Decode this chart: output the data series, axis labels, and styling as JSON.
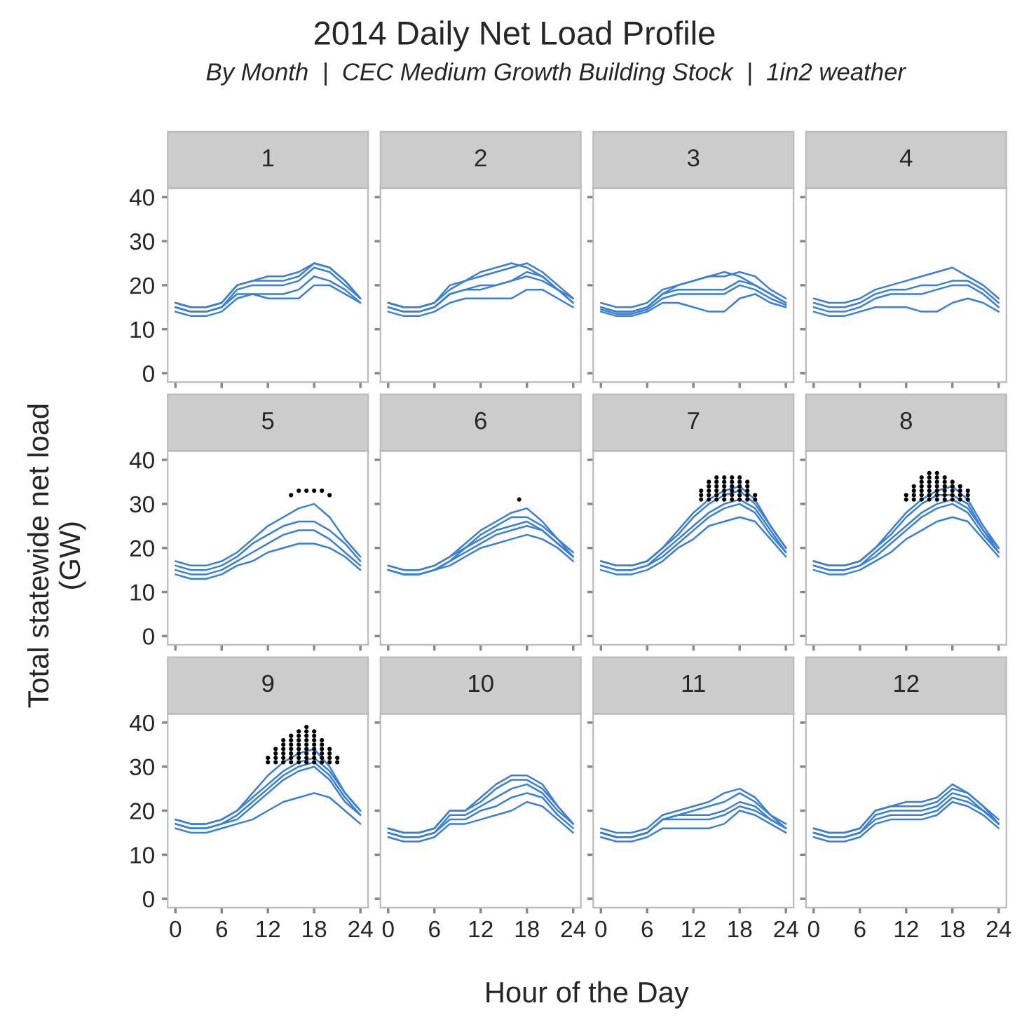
{
  "chart_data": [
    {
      "type": "line",
      "title": "1",
      "annotations": [
        "2014 Daily Net Load Profile",
        "By Month  |  CEC Medium Growth Building Stock  |  1in2 weather"
      ],
      "tick_labels": "y",
      "xlim": [
        -1,
        25
      ],
      "xticks": [
        0,
        6,
        12,
        18,
        24
      ],
      "ylim": [
        -2,
        42
      ],
      "yticks": [
        0,
        10,
        20,
        30,
        40
      ],
      "x": [
        0,
        2,
        4,
        6,
        8,
        10,
        12,
        14,
        16,
        18,
        20,
        22,
        24
      ],
      "series": [
        {
          "color": "#3a7fd5",
          "values": [
            15,
            14,
            14,
            15,
            19,
            20,
            20,
            20,
            21,
            24,
            23,
            20,
            17
          ]
        },
        {
          "color": "#3a7fd5",
          "values": [
            16,
            15,
            15,
            16,
            20,
            21,
            21,
            21,
            22,
            25,
            24,
            21,
            17
          ]
        },
        {
          "color": "#3a7fd5",
          "values": [
            14,
            13,
            13,
            14,
            17,
            18,
            18,
            18,
            19,
            22,
            21,
            19,
            16
          ]
        },
        {
          "color": "#3a7fd5",
          "values": [
            15,
            14,
            14,
            15,
            18,
            18,
            17,
            17,
            17,
            20,
            20,
            18,
            16
          ]
        },
        {
          "color": "#3a7fd5",
          "values": [
            16,
            15,
            15,
            16,
            20,
            21,
            22,
            22,
            23,
            25,
            24,
            21,
            17
          ]
        }
      ]
    },
    {
      "type": "line",
      "title": "2",
      "tick_labels": false,
      "xlim": [
        -1,
        25
      ],
      "xticks": [
        0,
        6,
        12,
        18,
        24
      ],
      "ylim": [
        -2,
        42
      ],
      "yticks": [
        0,
        10,
        20,
        30,
        40
      ],
      "x": [
        0,
        2,
        4,
        6,
        8,
        10,
        12,
        14,
        16,
        18,
        20,
        22,
        24
      ],
      "series": [
        {
          "color": "#3a7fd5",
          "values": [
            15,
            14,
            14,
            15,
            18,
            19,
            20,
            20,
            21,
            22,
            21,
            19,
            16
          ]
        },
        {
          "color": "#3a7fd5",
          "values": [
            16,
            15,
            15,
            16,
            20,
            21,
            22,
            23,
            24,
            25,
            23,
            20,
            17
          ]
        },
        {
          "color": "#3a7fd5",
          "values": [
            14,
            13,
            13,
            14,
            16,
            17,
            17,
            17,
            17,
            19,
            19,
            17,
            15
          ]
        },
        {
          "color": "#3a7fd5",
          "values": [
            15,
            14,
            14,
            15,
            18,
            19,
            19,
            20,
            21,
            23,
            22,
            19,
            16
          ]
        },
        {
          "color": "#3a7fd5",
          "values": [
            16,
            15,
            15,
            16,
            19,
            21,
            23,
            24,
            25,
            24,
            22,
            19,
            17
          ]
        }
      ]
    },
    {
      "type": "line",
      "title": "3",
      "tick_labels": false,
      "xlim": [
        -1,
        25
      ],
      "xticks": [
        0,
        6,
        12,
        18,
        24
      ],
      "ylim": [
        -2,
        42
      ],
      "yticks": [
        0,
        10,
        20,
        30,
        40
      ],
      "x": [
        0,
        2,
        4,
        6,
        8,
        10,
        12,
        14,
        16,
        18,
        20,
        22,
        24
      ],
      "series": [
        {
          "color": "#3a7fd5",
          "values": [
            15,
            14,
            14,
            15,
            18,
            19,
            19,
            19,
            19,
            21,
            20,
            18,
            16
          ]
        },
        {
          "color": "#3a7fd5",
          "values": [
            16,
            15,
            15,
            16,
            19,
            20,
            21,
            22,
            22,
            23,
            22,
            19,
            17
          ]
        },
        {
          "color": "#3a7fd5",
          "values": [
            14,
            13,
            13,
            14,
            16,
            16,
            15,
            14,
            14,
            17,
            18,
            16,
            15
          ]
        },
        {
          "color": "#3a7fd5",
          "values": [
            14.5,
            13.5,
            13.5,
            14.5,
            17,
            18,
            18,
            18,
            18,
            20,
            19,
            17,
            15.5
          ]
        },
        {
          "color": "#3a7fd5",
          "values": [
            15,
            14,
            14,
            15,
            18,
            20,
            21,
            22,
            23,
            22,
            20,
            18,
            16
          ]
        }
      ]
    },
    {
      "type": "line",
      "title": "4",
      "tick_labels": false,
      "xlim": [
        -1,
        25
      ],
      "xticks": [
        0,
        6,
        12,
        18,
        24
      ],
      "ylim": [
        -2,
        42
      ],
      "yticks": [
        0,
        10,
        20,
        30,
        40
      ],
      "x": [
        0,
        2,
        4,
        6,
        8,
        10,
        12,
        14,
        16,
        18,
        20,
        22,
        24
      ],
      "series": [
        {
          "color": "#3a7fd5",
          "values": [
            15,
            14,
            14,
            15,
            17,
            18,
            18,
            18,
            19,
            20,
            20,
            18,
            15
          ]
        },
        {
          "color": "#3a7fd5",
          "values": [
            17,
            16,
            16,
            17,
            19,
            20,
            21,
            22,
            23,
            24,
            22,
            20,
            17
          ]
        },
        {
          "color": "#3a7fd5",
          "values": [
            14,
            13,
            13,
            14,
            15,
            15,
            15,
            14,
            14,
            16,
            17,
            16,
            14
          ]
        },
        {
          "color": "#3a7fd5",
          "values": [
            16,
            15,
            15,
            16,
            18,
            19,
            19,
            20,
            20,
            21,
            21,
            19,
            16
          ]
        }
      ]
    },
    {
      "type": "line",
      "title": "5",
      "tick_labels": "y",
      "xlim": [
        -1,
        25
      ],
      "xticks": [
        0,
        6,
        12,
        18,
        24
      ],
      "ylim": [
        -2,
        42
      ],
      "yticks": [
        0,
        10,
        20,
        30,
        40
      ],
      "x": [
        0,
        2,
        4,
        6,
        8,
        10,
        12,
        14,
        16,
        18,
        20,
        22,
        24
      ],
      "series": [
        {
          "color": "#3a7fd5",
          "values": [
            15,
            14,
            14,
            15,
            17,
            19,
            21,
            23,
            24,
            24,
            22,
            19,
            16
          ]
        },
        {
          "color": "#3a7fd5",
          "values": [
            17,
            16,
            16,
            17,
            19,
            22,
            25,
            27,
            29,
            30,
            27,
            22,
            18
          ]
        },
        {
          "color": "#3a7fd5",
          "values": [
            14,
            13,
            13,
            14,
            16,
            17,
            19,
            20,
            21,
            21,
            20,
            18,
            15
          ]
        },
        {
          "color": "#3a7fd5",
          "values": [
            16,
            15,
            15,
            16,
            18,
            21,
            23,
            25,
            26,
            26,
            24,
            21,
            17
          ]
        },
        {
          "type": "scatter",
          "marker": "circle",
          "color": "#000000",
          "x": [
            15,
            16,
            17,
            18,
            19,
            20
          ],
          "values": [
            32,
            33,
            33,
            33,
            33,
            32
          ]
        }
      ]
    },
    {
      "type": "line",
      "title": "6",
      "tick_labels": false,
      "xlim": [
        -1,
        25
      ],
      "xticks": [
        0,
        6,
        12,
        18,
        24
      ],
      "ylim": [
        -2,
        42
      ],
      "yticks": [
        0,
        10,
        20,
        30,
        40
      ],
      "x": [
        0,
        2,
        4,
        6,
        8,
        10,
        12,
        14,
        16,
        18,
        20,
        22,
        24
      ],
      "series": [
        {
          "color": "#3a7fd5",
          "values": [
            15,
            14,
            14,
            15,
            17,
            20,
            22,
            24,
            25,
            26,
            24,
            21,
            18
          ]
        },
        {
          "color": "#3a7fd5",
          "values": [
            16,
            15,
            15,
            16,
            18,
            21,
            24,
            26,
            28,
            29,
            26,
            22,
            19
          ]
        },
        {
          "color": "#3a7fd5",
          "values": [
            15,
            14,
            14,
            15,
            16,
            18,
            20,
            21,
            22,
            23,
            22,
            20,
            17
          ]
        },
        {
          "color": "#3a7fd5",
          "values": [
            15,
            14,
            14,
            15,
            17,
            19,
            21,
            23,
            24,
            25,
            24,
            21,
            18
          ]
        },
        {
          "color": "#3a7fd5",
          "values": [
            16,
            15,
            15,
            16,
            18,
            20,
            23,
            25,
            27,
            27,
            25,
            22,
            18
          ]
        },
        {
          "type": "scatter",
          "marker": "circle",
          "color": "#000000",
          "x": [
            17
          ],
          "values": [
            31
          ]
        }
      ]
    },
    {
      "type": "line",
      "title": "7",
      "tick_labels": false,
      "xlim": [
        -1,
        25
      ],
      "xticks": [
        0,
        6,
        12,
        18,
        24
      ],
      "ylim": [
        -2,
        42
      ],
      "yticks": [
        0,
        10,
        20,
        30,
        40
      ],
      "x": [
        0,
        2,
        4,
        6,
        8,
        10,
        12,
        14,
        16,
        18,
        20,
        22,
        24
      ],
      "series": [
        {
          "color": "#3a7fd5",
          "values": [
            16,
            15,
            15,
            16,
            19,
            22,
            25,
            28,
            30,
            31,
            29,
            24,
            19
          ]
        },
        {
          "color": "#3a7fd5",
          "values": [
            17,
            16,
            16,
            17,
            20,
            24,
            28,
            31,
            33,
            34,
            31,
            25,
            20
          ]
        },
        {
          "color": "#3a7fd5",
          "values": [
            15,
            14,
            14,
            15,
            17,
            20,
            22,
            25,
            26,
            27,
            26,
            22,
            18
          ]
        },
        {
          "color": "#3a7fd5",
          "values": [
            16,
            15,
            15,
            16,
            18,
            21,
            24,
            27,
            29,
            30,
            28,
            23,
            19
          ]
        },
        {
          "color": "#3a7fd5",
          "values": [
            17,
            16,
            16,
            17,
            20,
            23,
            27,
            30,
            32,
            33,
            30,
            25,
            20
          ]
        },
        {
          "type": "scatter",
          "marker": "circle",
          "color": "#000000",
          "x": [
            13,
            13,
            13,
            14,
            14,
            14,
            14,
            14,
            15,
            15,
            15,
            15,
            15,
            15,
            16,
            16,
            16,
            16,
            16,
            16,
            17,
            17,
            17,
            17,
            17,
            17,
            18,
            18,
            18,
            18,
            18,
            18,
            19,
            19,
            19,
            19,
            19,
            20,
            20
          ],
          "values": [
            31,
            32,
            33,
            31,
            32,
            33,
            34,
            35,
            31,
            32,
            33,
            34,
            35,
            36,
            31,
            32,
            33,
            34,
            35,
            36,
            31,
            32,
            33,
            34,
            35,
            36,
            31,
            32,
            33,
            34,
            35,
            36,
            31,
            32,
            33,
            34,
            35,
            31,
            32
          ]
        }
      ]
    },
    {
      "type": "line",
      "title": "8",
      "tick_labels": false,
      "xlim": [
        -1,
        25
      ],
      "xticks": [
        0,
        6,
        12,
        18,
        24
      ],
      "ylim": [
        -2,
        42
      ],
      "yticks": [
        0,
        10,
        20,
        30,
        40
      ],
      "x": [
        0,
        2,
        4,
        6,
        8,
        10,
        12,
        14,
        16,
        18,
        20,
        22,
        24
      ],
      "series": [
        {
          "color": "#3a7fd5",
          "values": [
            16,
            15,
            15,
            16,
            19,
            22,
            25,
            28,
            30,
            31,
            29,
            24,
            19
          ]
        },
        {
          "color": "#3a7fd5",
          "values": [
            17,
            16,
            16,
            17,
            20,
            24,
            28,
            31,
            33,
            34,
            31,
            25,
            20
          ]
        },
        {
          "color": "#3a7fd5",
          "values": [
            15,
            14,
            14,
            15,
            17,
            19,
            22,
            24,
            26,
            27,
            26,
            22,
            18
          ]
        },
        {
          "color": "#3a7fd5",
          "values": [
            16,
            15,
            15,
            16,
            18,
            21,
            24,
            27,
            29,
            30,
            28,
            23,
            19
          ]
        },
        {
          "color": "#3a7fd5",
          "values": [
            17,
            16,
            16,
            17,
            20,
            23,
            27,
            30,
            32,
            32,
            30,
            24,
            20
          ]
        },
        {
          "type": "scatter",
          "marker": "circle",
          "color": "#000000",
          "x": [
            12,
            12,
            13,
            13,
            13,
            13,
            14,
            14,
            14,
            14,
            14,
            14,
            15,
            15,
            15,
            15,
            15,
            15,
            15,
            16,
            16,
            16,
            16,
            16,
            16,
            16,
            17,
            17,
            17,
            17,
            17,
            17,
            18,
            18,
            18,
            18,
            18,
            19,
            19,
            19,
            19,
            20,
            20,
            20
          ],
          "values": [
            31,
            32,
            31,
            32,
            33,
            34,
            31,
            32,
            33,
            34,
            35,
            36,
            31,
            32,
            33,
            34,
            35,
            36,
            37,
            31,
            32,
            33,
            34,
            35,
            36,
            37,
            31,
            32,
            33,
            34,
            35,
            36,
            31,
            32,
            33,
            34,
            35,
            31,
            32,
            33,
            34,
            31,
            32,
            33
          ]
        }
      ]
    },
    {
      "type": "line",
      "title": "9",
      "xlabel": "Hour of the Day",
      "ylabel": "Total statewide net load\n(GW)",
      "xlim": [
        -1,
        25
      ],
      "xticks": [
        0,
        6,
        12,
        18,
        24
      ],
      "ylim": [
        -2,
        42
      ],
      "yticks": [
        0,
        10,
        20,
        30,
        40
      ],
      "x": [
        0,
        2,
        4,
        6,
        8,
        10,
        12,
        14,
        16,
        18,
        20,
        22,
        24
      ],
      "series": [
        {
          "color": "#3a7fd5",
          "values": [
            17,
            16,
            16,
            17,
            19,
            22,
            25,
            28,
            30,
            31,
            28,
            23,
            19
          ]
        },
        {
          "color": "#3a7fd5",
          "values": [
            18,
            17,
            17,
            18,
            20,
            24,
            28,
            31,
            33,
            34,
            30,
            24,
            20
          ]
        },
        {
          "color": "#3a7fd5",
          "values": [
            16,
            15,
            15,
            16,
            17,
            18,
            20,
            22,
            23,
            24,
            23,
            20,
            17
          ]
        },
        {
          "color": "#3a7fd5",
          "values": [
            17,
            16,
            16,
            17,
            18,
            21,
            24,
            27,
            29,
            30,
            27,
            22,
            19
          ]
        },
        {
          "color": "#3a7fd5",
          "values": [
            18,
            17,
            17,
            18,
            20,
            23,
            26,
            29,
            31,
            32,
            29,
            24,
            20
          ]
        },
        {
          "type": "scatter",
          "marker": "circle",
          "color": "#000000",
          "x": [
            12,
            12,
            13,
            13,
            13,
            13,
            14,
            14,
            14,
            14,
            14,
            14,
            15,
            15,
            15,
            15,
            15,
            15,
            15,
            16,
            16,
            16,
            16,
            16,
            16,
            16,
            16,
            17,
            17,
            17,
            17,
            17,
            17,
            17,
            17,
            17,
            18,
            18,
            18,
            18,
            18,
            18,
            18,
            18,
            19,
            19,
            19,
            19,
            19,
            19,
            20,
            20,
            20,
            20,
            21,
            21
          ],
          "values": [
            31,
            32,
            31,
            32,
            33,
            34,
            31,
            32,
            33,
            34,
            35,
            36,
            31,
            32,
            33,
            34,
            35,
            36,
            37,
            31,
            32,
            33,
            34,
            35,
            36,
            37,
            38,
            31,
            32,
            33,
            34,
            35,
            36,
            37,
            38,
            39,
            31,
            32,
            33,
            34,
            35,
            36,
            37,
            38,
            31,
            32,
            33,
            34,
            35,
            36,
            31,
            32,
            33,
            34,
            31,
            32
          ]
        }
      ]
    },
    {
      "type": "line",
      "title": "10",
      "tick_labels": "x",
      "xlim": [
        -1,
        25
      ],
      "xticks": [
        0,
        6,
        12,
        18,
        24
      ],
      "ylim": [
        -2,
        42
      ],
      "yticks": [
        0,
        10,
        20,
        30,
        40
      ],
      "x": [
        0,
        2,
        4,
        6,
        8,
        10,
        12,
        14,
        16,
        18,
        20,
        22,
        24
      ],
      "series": [
        {
          "color": "#3a7fd5",
          "values": [
            15,
            14,
            14,
            15,
            19,
            19,
            21,
            23,
            25,
            26,
            24,
            20,
            17
          ]
        },
        {
          "color": "#3a7fd5",
          "values": [
            16,
            15,
            15,
            16,
            20,
            20,
            23,
            26,
            28,
            28,
            26,
            21,
            17
          ]
        },
        {
          "color": "#3a7fd5",
          "values": [
            14,
            13,
            13,
            14,
            17,
            17,
            18,
            19,
            20,
            22,
            21,
            18,
            15
          ]
        },
        {
          "color": "#3a7fd5",
          "values": [
            15,
            14,
            14,
            15,
            18,
            18,
            20,
            21,
            23,
            24,
            23,
            19,
            16
          ]
        },
        {
          "color": "#3a7fd5",
          "values": [
            16,
            15,
            15,
            16,
            20,
            20,
            22,
            25,
            27,
            27,
            25,
            21,
            17
          ]
        }
      ]
    },
    {
      "type": "line",
      "title": "11",
      "tick_labels": "x",
      "xlim": [
        -1,
        25
      ],
      "xticks": [
        0,
        6,
        12,
        18,
        24
      ],
      "ylim": [
        -2,
        42
      ],
      "yticks": [
        0,
        10,
        20,
        30,
        40
      ],
      "x": [
        0,
        2,
        4,
        6,
        8,
        10,
        12,
        14,
        16,
        18,
        20,
        22,
        24
      ],
      "series": [
        {
          "color": "#3a7fd5",
          "values": [
            15,
            14,
            14,
            15,
            18,
            19,
            19,
            19,
            20,
            22,
            21,
            18,
            16
          ]
        },
        {
          "color": "#3a7fd5",
          "values": [
            16,
            15,
            15,
            16,
            19,
            20,
            21,
            22,
            24,
            25,
            23,
            19,
            17
          ]
        },
        {
          "color": "#3a7fd5",
          "values": [
            14,
            13,
            13,
            14,
            16,
            16,
            16,
            16,
            17,
            20,
            19,
            17,
            15
          ]
        },
        {
          "color": "#3a7fd5",
          "values": [
            15,
            14,
            14,
            15,
            18,
            18,
            18,
            18,
            19,
            21,
            20,
            18,
            16
          ]
        },
        {
          "color": "#3a7fd5",
          "values": [
            15,
            14,
            14,
            15,
            18,
            19,
            20,
            21,
            22,
            24,
            22,
            19,
            16
          ]
        }
      ]
    },
    {
      "type": "line",
      "title": "12",
      "tick_labels": "x",
      "xlim": [
        -1,
        25
      ],
      "xticks": [
        0,
        6,
        12,
        18,
        24
      ],
      "ylim": [
        -2,
        42
      ],
      "yticks": [
        0,
        10,
        20,
        30,
        40
      ],
      "x": [
        0,
        2,
        4,
        6,
        8,
        10,
        12,
        14,
        16,
        18,
        20,
        22,
        24
      ],
      "series": [
        {
          "color": "#3a7fd5",
          "values": [
            15,
            14,
            14,
            15,
            19,
            20,
            20,
            20,
            21,
            24,
            23,
            20,
            17
          ]
        },
        {
          "color": "#3a7fd5",
          "values": [
            16,
            15,
            15,
            16,
            20,
            21,
            22,
            22,
            23,
            26,
            24,
            21,
            18
          ]
        },
        {
          "color": "#3a7fd5",
          "values": [
            14,
            13,
            13,
            14,
            17,
            18,
            18,
            18,
            19,
            22,
            21,
            19,
            16
          ]
        },
        {
          "color": "#3a7fd5",
          "values": [
            15,
            14,
            14,
            15,
            18,
            19,
            19,
            19,
            20,
            23,
            22,
            20,
            17
          ]
        },
        {
          "color": "#3a7fd5",
          "values": [
            16,
            15,
            15,
            16,
            20,
            21,
            21,
            21,
            22,
            25,
            24,
            21,
            17
          ]
        }
      ]
    }
  ]
}
